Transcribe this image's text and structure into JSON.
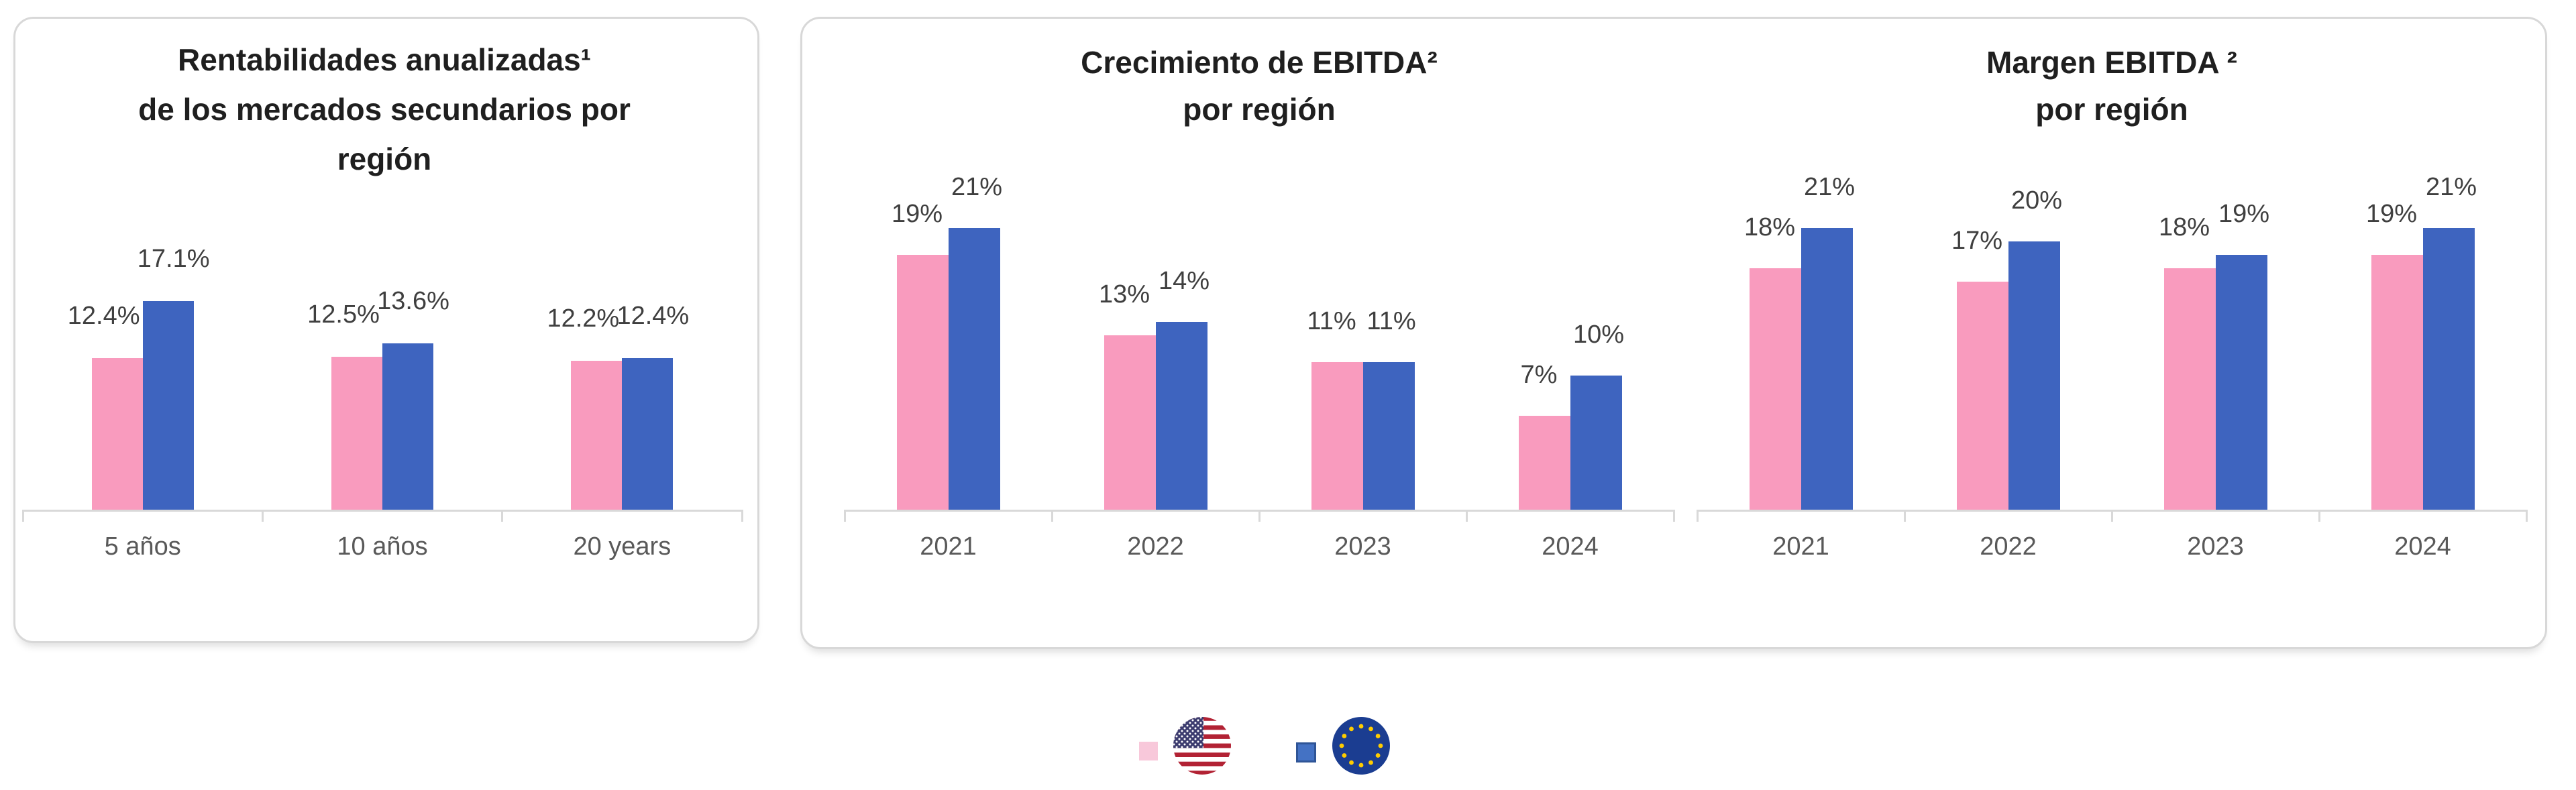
{
  "page": {
    "background": "#ffffff"
  },
  "colors": {
    "us_bar": "#F99BBE",
    "eu_bar": "#3E64BF",
    "legend_us_swatch": "#F8C8DA",
    "legend_eu_swatch": "#4472C4",
    "legend_eu_swatch_border": "#2F5597",
    "card_border": "#D8D8D8",
    "axis": "#D9D9D9",
    "title_text": "#1F1F1F",
    "data_label_text": "#3F3F3F",
    "axis_label_text": "#595959",
    "us_flag_red": "#B22234",
    "us_flag_blue": "#3C3B6E",
    "eu_flag_blue": "#1B3D91",
    "eu_flag_star": "#FFCC00"
  },
  "legend": {
    "position": "bottom-center",
    "items": [
      {
        "region": "United States",
        "swatch_color": "#F8C8DA",
        "icon": "us-flag"
      },
      {
        "region": "Europe",
        "swatch_color": "#4472C4",
        "icon": "eu-flag"
      }
    ]
  },
  "chart_data": [
    {
      "id": "secondary-market-returns",
      "type": "bar",
      "title": "Rentabilidades anualizadas¹ de los mercados secundarios por región",
      "title_lines": [
        "Rentabilidades anualizadas¹",
        "de los mercados secundarios por",
        "región"
      ],
      "categories": [
        "5 años",
        "10 años",
        "20 years"
      ],
      "series": [
        {
          "name": "United States",
          "color": "#F99BBE",
          "values": [
            12.4,
            12.5,
            12.2
          ],
          "labels": [
            "12.4%",
            "12.5%",
            "12.2%"
          ]
        },
        {
          "name": "Europe",
          "color": "#3E64BF",
          "values": [
            17.1,
            13.6,
            12.4
          ],
          "labels": [
            "17.1%",
            "13.6%",
            "12.4%"
          ]
        }
      ],
      "xlabel": "",
      "ylabel": "",
      "ylim": [
        0,
        18
      ],
      "grid": false,
      "legend_position": "bottom"
    },
    {
      "id": "ebitda-growth",
      "type": "bar",
      "title": "Crecimiento de EBITDA² por región",
      "title_lines": [
        "Crecimiento de EBITDA²",
        "por región"
      ],
      "categories": [
        "2021",
        "2022",
        "2023",
        "2024"
      ],
      "series": [
        {
          "name": "United States",
          "color": "#F99BBE",
          "values": [
            19,
            13,
            11,
            7
          ],
          "labels": [
            "19%",
            "13%",
            "11%",
            "7%"
          ]
        },
        {
          "name": "Europe",
          "color": "#3E64BF",
          "values": [
            21,
            14,
            11,
            10
          ],
          "labels": [
            "21%",
            "14%",
            "11%",
            "10%"
          ]
        }
      ],
      "xlabel": "",
      "ylabel": "",
      "ylim": [
        0,
        22
      ],
      "grid": false,
      "legend_position": "bottom"
    },
    {
      "id": "ebitda-margin",
      "type": "bar",
      "title": "Margen EBITDA ² por región",
      "title_lines": [
        "Margen EBITDA ²",
        "por región"
      ],
      "categories": [
        "2021",
        "2022",
        "2023",
        "2024"
      ],
      "series": [
        {
          "name": "United States",
          "color": "#F99BBE",
          "values": [
            18,
            17,
            18,
            19
          ],
          "labels": [
            "18%",
            "17%",
            "18%",
            "19%"
          ]
        },
        {
          "name": "Europe",
          "color": "#3E64BF",
          "values": [
            21,
            20,
            19,
            21
          ],
          "labels": [
            "21%",
            "20%",
            "19%",
            "21%"
          ]
        }
      ],
      "xlabel": "",
      "ylabel": "",
      "ylim": [
        0,
        22
      ],
      "grid": false,
      "legend_position": "bottom"
    }
  ]
}
